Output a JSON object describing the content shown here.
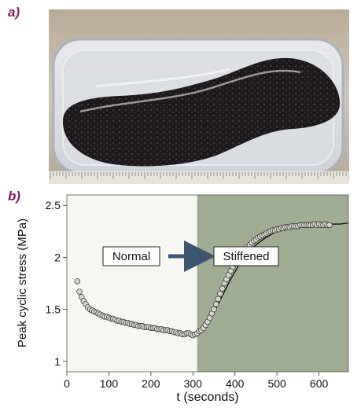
{
  "panels": {
    "a_label": "a)",
    "b_label": "b)"
  },
  "photo": {
    "subject": "sea cucumber in clear plastic container"
  },
  "colors": {
    "normal_bg": "#f6f7f0",
    "stiffened_bg": "#9fac92",
    "panel_label": "#8b1a66",
    "arrow": "#3d556f",
    "marker_fill": "#d6d6cc"
  },
  "chart_data": {
    "type": "scatter",
    "xlabel": "t (seconds)",
    "ylabel": "Peak cyclic stress (MPa)",
    "xlim": [
      0,
      670
    ],
    "ylim": [
      0.9,
      2.6
    ],
    "xticks": [
      0,
      100,
      200,
      300,
      400,
      500,
      600
    ],
    "yticks": [
      1,
      1.5,
      2,
      2.5
    ],
    "region_boundary_x": 310,
    "grid": false,
    "annotations": {
      "normal": "Normal",
      "stiffened": "Stiffened"
    },
    "series": [
      {
        "x": [
          25,
          30,
          35,
          40,
          45,
          50,
          55,
          60,
          65,
          70,
          75,
          80,
          85,
          90,
          95,
          100,
          105,
          110,
          115,
          120,
          125,
          130,
          135,
          140,
          145,
          150,
          155,
          160,
          165,
          170,
          175,
          180,
          185,
          190,
          195,
          200,
          205,
          210,
          215,
          220,
          225,
          230,
          235,
          240,
          245,
          250,
          255,
          260,
          265,
          270,
          275,
          280,
          285,
          290,
          295,
          300,
          305,
          310,
          315,
          320,
          325,
          330,
          335,
          340,
          345,
          350,
          355,
          360,
          365,
          370,
          375,
          380,
          385,
          390,
          395,
          400,
          405,
          410,
          415,
          420,
          425,
          430,
          435,
          440,
          445,
          450,
          455,
          460,
          465,
          470,
          475,
          480,
          485,
          490,
          495,
          500,
          505,
          510,
          515,
          520,
          525,
          530,
          535,
          540,
          545,
          550,
          555,
          560,
          565,
          570,
          575,
          580,
          585,
          590,
          595,
          600,
          605,
          610,
          615,
          620,
          625
        ],
        "y": [
          1.77,
          1.67,
          1.62,
          1.58,
          1.55,
          1.52,
          1.5,
          1.49,
          1.48,
          1.47,
          1.46,
          1.45,
          1.44,
          1.43,
          1.43,
          1.42,
          1.41,
          1.41,
          1.4,
          1.39,
          1.39,
          1.38,
          1.38,
          1.37,
          1.37,
          1.36,
          1.36,
          1.35,
          1.35,
          1.34,
          1.34,
          1.34,
          1.33,
          1.33,
          1.33,
          1.32,
          1.32,
          1.32,
          1.31,
          1.31,
          1.31,
          1.3,
          1.3,
          1.3,
          1.29,
          1.29,
          1.28,
          1.28,
          1.27,
          1.27,
          1.26,
          1.26,
          1.27,
          1.27,
          1.26,
          1.25,
          1.26,
          1.27,
          1.29,
          1.3,
          1.32,
          1.35,
          1.38,
          1.42,
          1.46,
          1.5,
          1.55,
          1.6,
          1.65,
          1.7,
          1.75,
          1.79,
          1.83,
          1.87,
          1.91,
          1.94,
          1.97,
          2.0,
          2.03,
          2.05,
          2.08,
          2.1,
          2.12,
          2.14,
          2.16,
          2.17,
          2.19,
          2.2,
          2.21,
          2.22,
          2.23,
          2.24,
          2.25,
          2.26,
          2.26,
          2.27,
          2.27,
          2.28,
          2.28,
          2.29,
          2.29,
          2.29,
          2.3,
          2.3,
          2.3,
          2.3,
          2.31,
          2.31,
          2.31,
          2.31,
          2.31,
          2.31,
          2.31,
          2.32,
          2.31,
          2.32,
          2.31,
          2.31,
          2.32,
          2.31,
          2.31
        ]
      }
    ],
    "fit_line": {
      "x": [
        310,
        330,
        350,
        370,
        390,
        410,
        430,
        450,
        470,
        490,
        510,
        530,
        550,
        570,
        590,
        610,
        630,
        650,
        670
      ],
      "y": [
        1.27,
        1.33,
        1.47,
        1.63,
        1.79,
        1.93,
        2.04,
        2.12,
        2.18,
        2.23,
        2.26,
        2.28,
        2.3,
        2.31,
        2.32,
        2.32,
        2.32,
        2.32,
        2.33
      ]
    }
  }
}
